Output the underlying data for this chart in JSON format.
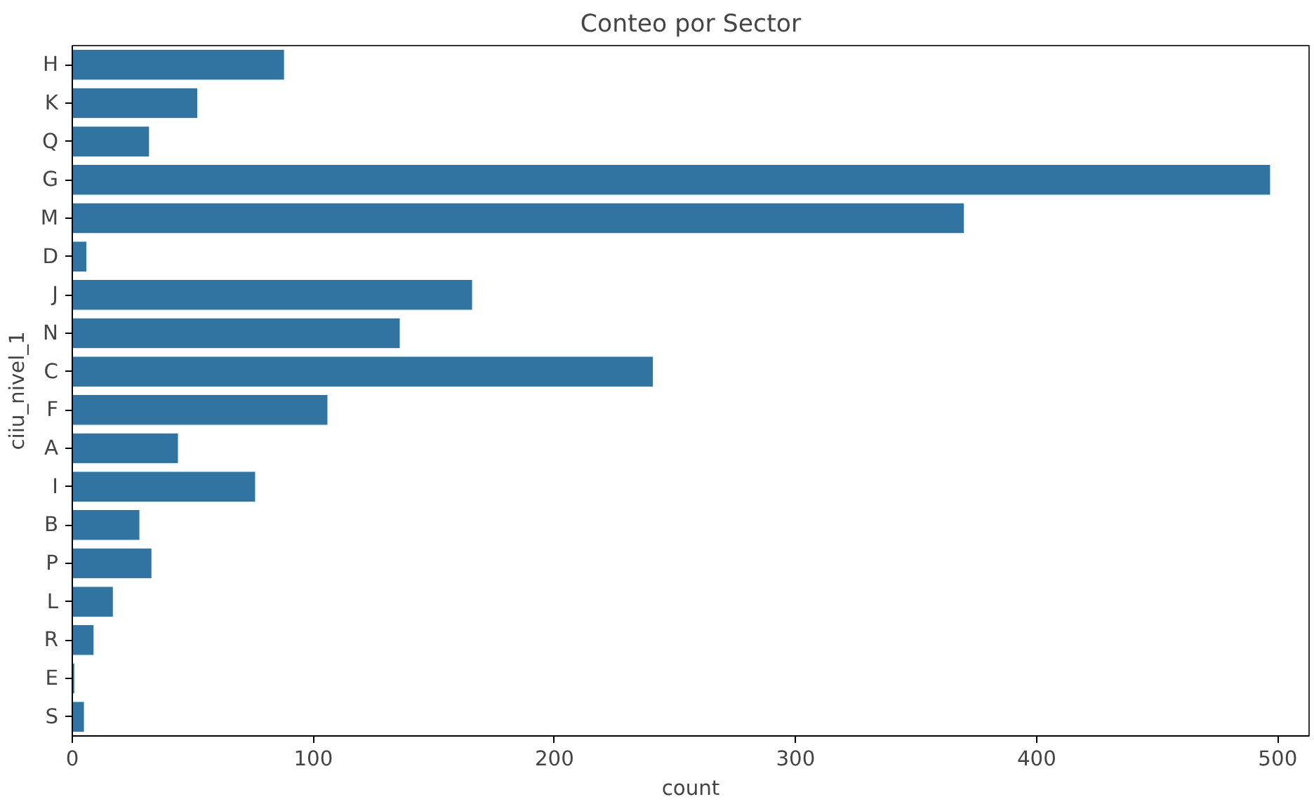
{
  "chart_data": {
    "type": "bar",
    "orientation": "horizontal",
    "title": "Conteo por Sector",
    "xlabel": "count",
    "ylabel": "ciiu_nivel_1",
    "categories": [
      "H",
      "K",
      "Q",
      "G",
      "M",
      "D",
      "J",
      "N",
      "C",
      "F",
      "A",
      "I",
      "B",
      "P",
      "L",
      "R",
      "E",
      "S"
    ],
    "values": [
      88,
      52,
      32,
      497,
      370,
      6,
      166,
      136,
      241,
      106,
      44,
      76,
      28,
      33,
      17,
      9,
      1,
      5
    ],
    "color": "#3274a1",
    "xlim": [
      0,
      513
    ],
    "xticks": [
      0,
      100,
      200,
      300,
      400,
      500
    ],
    "grid": false
  }
}
